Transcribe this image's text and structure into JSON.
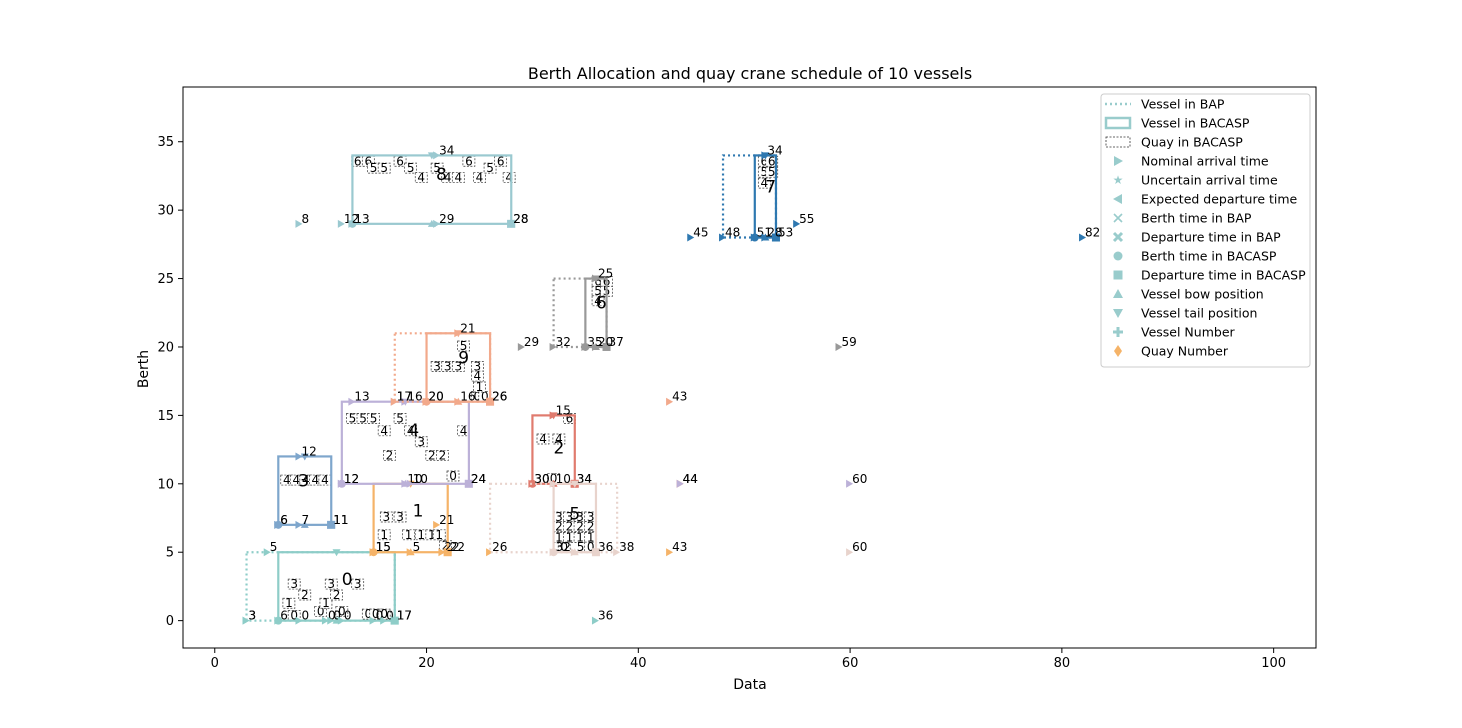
{
  "chart_data": {
    "type": "scatter",
    "title": "Berth Allocation and quay crane schedule  of 10 vessels",
    "xlabel": "Data",
    "ylabel": "Berth",
    "xlim": [
      -3,
      104
    ],
    "ylim": [
      -2,
      39
    ],
    "xticks": [
      0,
      20,
      40,
      60,
      80,
      100
    ],
    "yticks": [
      0,
      5,
      10,
      15,
      20,
      25,
      30,
      35
    ],
    "grid": false,
    "legend_position": "top-right",
    "legend": [
      {
        "label": "Vessel in BAP",
        "icon": "dotted-line"
      },
      {
        "label": "Vessel in BACASP",
        "icon": "solid-rect"
      },
      {
        "label": "Quay in BACASP",
        "icon": "dashed-rect"
      },
      {
        "label": "Nominal arrival time",
        "icon": "triangle-right"
      },
      {
        "label": "Uncertain arrival time",
        "icon": "star"
      },
      {
        "label": "Expected departure time",
        "icon": "triangle-left"
      },
      {
        "label": "Berth time in BAP",
        "icon": "x"
      },
      {
        "label": "Departure time in BAP",
        "icon": "x-filled"
      },
      {
        "label": "Berth time in BACASP",
        "icon": "circle"
      },
      {
        "label": "Departure time in BACASP",
        "icon": "square"
      },
      {
        "label": "Vessel bow position",
        "icon": "triangle-up"
      },
      {
        "label": "Vessel tail position",
        "icon": "triangle-down"
      },
      {
        "label": "Vessel Number",
        "icon": "plus"
      },
      {
        "label": "Quay Number",
        "icon": "diamond"
      }
    ],
    "legend_color": "#99cccc",
    "legend_quay_color": "#f5b368",
    "vessels": [
      {
        "id": "0",
        "color": "#8ecdc8",
        "bap": [
          3,
          0,
          17,
          5
        ],
        "bacasp": [
          6,
          0,
          17,
          5
        ],
        "labels": [
          [
            3,
            0,
            "3"
          ],
          [
            3,
            0,
            "3"
          ],
          [
            5,
            5,
            "5"
          ],
          [
            6,
            0,
            "6"
          ],
          [
            8,
            0,
            "0"
          ],
          [
            10.5,
            0,
            "0"
          ],
          [
            11,
            0,
            "0"
          ],
          [
            12,
            0,
            "0"
          ],
          [
            15,
            0,
            "0"
          ],
          [
            16,
            0,
            "0"
          ],
          [
            17,
            0,
            "17"
          ],
          [
            17,
            0,
            "17"
          ],
          [
            36,
            0,
            "36"
          ]
        ]
      },
      {
        "id": "1",
        "color": "#f5b368",
        "bap": null,
        "bacasp": [
          15,
          5,
          22,
          10
        ],
        "labels": [
          [
            15,
            5,
            "15"
          ],
          [
            15,
            5,
            "15"
          ],
          [
            18.5,
            5,
            "5"
          ],
          [
            21.5,
            5,
            "22"
          ],
          [
            22,
            5,
            "22"
          ],
          [
            21,
            7,
            "21"
          ],
          [
            26,
            5,
            "26"
          ],
          [
            43,
            5,
            "43"
          ]
        ]
      },
      {
        "id": "2",
        "color": "#e07b6e",
        "bap": null,
        "bacasp": [
          30,
          10,
          34,
          15
        ],
        "labels": [
          [
            30,
            10,
            "30"
          ],
          [
            30,
            10,
            "30"
          ],
          [
            34,
            10,
            "34"
          ],
          [
            34,
            10,
            "34"
          ],
          [
            32,
            15,
            "15"
          ],
          [
            44,
            10,
            "44"
          ]
        ]
      },
      {
        "id": "3",
        "color": "#7ea6cc",
        "bap": null,
        "bacasp": [
          6,
          7,
          11,
          12
        ],
        "labels": [
          [
            6,
            7,
            "6"
          ],
          [
            6,
            7,
            "6"
          ],
          [
            8,
            7,
            "7"
          ],
          [
            11,
            7,
            "11"
          ],
          [
            11,
            7,
            "11"
          ],
          [
            8,
            12,
            "12"
          ]
        ]
      },
      {
        "id": "4",
        "color": "#bcb1d8",
        "bap": null,
        "bacasp": [
          12,
          10,
          24,
          16
        ],
        "labels": [
          [
            12,
            10,
            "12"
          ],
          [
            12,
            10,
            "12"
          ],
          [
            18,
            10,
            "10"
          ],
          [
            18.5,
            10,
            "10"
          ],
          [
            24,
            10,
            "24"
          ],
          [
            24,
            10,
            "24"
          ],
          [
            13,
            16,
            "13"
          ],
          [
            17,
            16,
            "17"
          ],
          [
            18,
            16,
            "16"
          ],
          [
            44,
            10,
            "44"
          ],
          [
            60,
            10,
            "60"
          ]
        ]
      },
      {
        "id": "5",
        "color": "#e8d3cc",
        "bap": [
          26,
          5,
          38,
          10
        ],
        "bacasp": [
          32,
          5,
          36,
          10
        ],
        "labels": [
          [
            32,
            5,
            "32"
          ],
          [
            34,
            5,
            "5"
          ],
          [
            36,
            5,
            "36"
          ],
          [
            38,
            5,
            "38"
          ],
          [
            32,
            10,
            "10"
          ],
          [
            60,
            5,
            "60"
          ]
        ]
      },
      {
        "id": "6",
        "color": "#999999",
        "bap": [
          32,
          20,
          37,
          25
        ],
        "bacasp": [
          35,
          20,
          37,
          25
        ],
        "labels": [
          [
            29,
            20,
            "29"
          ],
          [
            32,
            20,
            "32"
          ],
          [
            35,
            20,
            "35"
          ],
          [
            36,
            20,
            "20"
          ],
          [
            37,
            20,
            "37"
          ],
          [
            36,
            25,
            "25"
          ],
          [
            59,
            20,
            "59"
          ]
        ]
      },
      {
        "id": "7",
        "color": "#2e78b0",
        "bap": [
          48,
          28,
          53,
          34
        ],
        "bacasp": [
          51,
          28,
          53,
          34
        ],
        "labels": [
          [
            45,
            28,
            "45"
          ],
          [
            48,
            28,
            "48"
          ],
          [
            51,
            28,
            "51"
          ],
          [
            52,
            28,
            "28"
          ],
          [
            53,
            28,
            "53"
          ],
          [
            52,
            34,
            "34"
          ],
          [
            55,
            29,
            "55"
          ],
          [
            82,
            28,
            "82"
          ]
        ]
      },
      {
        "id": "8",
        "color": "#9ac9d0",
        "bap": null,
        "bacasp": [
          13,
          29,
          28,
          34
        ],
        "labels": [
          [
            8,
            29,
            "8"
          ],
          [
            12,
            29,
            "12"
          ],
          [
            13,
            29,
            "13"
          ],
          [
            21,
            29,
            "29"
          ],
          [
            28,
            29,
            "28"
          ],
          [
            28,
            29,
            "28"
          ],
          [
            21,
            34,
            "34"
          ]
        ]
      },
      {
        "id": "9",
        "color": "#f2a98b",
        "bap": [
          17,
          16,
          26,
          21
        ],
        "bacasp": [
          20,
          16,
          26,
          21
        ],
        "labels": [
          [
            17,
            16,
            "17"
          ],
          [
            20,
            16,
            "20"
          ],
          [
            20,
            16,
            "20"
          ],
          [
            23,
            16,
            "16"
          ],
          [
            26,
            16,
            "26"
          ],
          [
            26,
            16,
            "26"
          ],
          [
            23,
            21,
            "21"
          ],
          [
            43,
            16,
            "43"
          ]
        ]
      }
    ],
    "vessel_number_labels": [
      {
        "x": 12.5,
        "y": 2.6,
        "text": "0"
      },
      {
        "x": 19.2,
        "y": 7.6,
        "text": "1"
      },
      {
        "x": 32.5,
        "y": 12.2,
        "text": "2"
      },
      {
        "x": 8.4,
        "y": 9.8,
        "text": "3"
      },
      {
        "x": 18.8,
        "y": 13.5,
        "text": "4"
      },
      {
        "x": 34,
        "y": 7.4,
        "text": "5"
      },
      {
        "x": 36.5,
        "y": 22.8,
        "text": "6"
      },
      {
        "x": 52.5,
        "y": 31.3,
        "text": "7"
      },
      {
        "x": 21.4,
        "y": 32.2,
        "text": "8"
      },
      {
        "x": 23.5,
        "y": 18.8,
        "text": "9"
      }
    ],
    "quay_cells": [
      {
        "x": 7,
        "y": 1.2,
        "t": "1"
      },
      {
        "x": 7.5,
        "y": 2.6,
        "t": "3"
      },
      {
        "x": 8.5,
        "y": 1.8,
        "t": "2"
      },
      {
        "x": 10,
        "y": 0.6,
        "t": "0"
      },
      {
        "x": 10.5,
        "y": 1.2,
        "t": "1"
      },
      {
        "x": 11,
        "y": 2.6,
        "t": "3"
      },
      {
        "x": 11.5,
        "y": 1.8,
        "t": "2"
      },
      {
        "x": 12,
        "y": 0.6,
        "t": "0"
      },
      {
        "x": 13.5,
        "y": 2.6,
        "t": "3"
      },
      {
        "x": 14.5,
        "y": 0.4,
        "t": "0"
      },
      {
        "x": 15.2,
        "y": 0.4,
        "t": "0"
      },
      {
        "x": 16,
        "y": 0.4,
        "t": "0"
      },
      {
        "x": 7.5,
        "y": 0.3,
        "t": "0"
      },
      {
        "x": 16,
        "y": 6.2,
        "t": "1"
      },
      {
        "x": 16.2,
        "y": 7.5,
        "t": "3"
      },
      {
        "x": 17.5,
        "y": 7.5,
        "t": "3"
      },
      {
        "x": 18.3,
        "y": 6.2,
        "t": "1"
      },
      {
        "x": 19.5,
        "y": 6.2,
        "t": "1"
      },
      {
        "x": 20.5,
        "y": 6.2,
        "t": "1"
      },
      {
        "x": 21.2,
        "y": 6.2,
        "t": "1"
      },
      {
        "x": 21.8,
        "y": 5.4,
        "t": "2"
      },
      {
        "x": 31,
        "y": 13.2,
        "t": "4"
      },
      {
        "x": 32.5,
        "y": 13.2,
        "t": "4"
      },
      {
        "x": 33.5,
        "y": 14.7,
        "t": "6"
      },
      {
        "x": 32,
        "y": 10.3,
        "t": "0"
      },
      {
        "x": 6.8,
        "y": 10.2,
        "t": "4"
      },
      {
        "x": 7.7,
        "y": 10.2,
        "t": "4"
      },
      {
        "x": 8.6,
        "y": 10.2,
        "t": "4"
      },
      {
        "x": 9.5,
        "y": 10.2,
        "t": "4"
      },
      {
        "x": 10.4,
        "y": 10.2,
        "t": "4"
      },
      {
        "x": 13,
        "y": 14.7,
        "t": "5"
      },
      {
        "x": 14,
        "y": 14.7,
        "t": "5"
      },
      {
        "x": 15,
        "y": 14.7,
        "t": "5"
      },
      {
        "x": 17.5,
        "y": 14.7,
        "t": "5"
      },
      {
        "x": 16,
        "y": 13.8,
        "t": "4"
      },
      {
        "x": 18.5,
        "y": 13.8,
        "t": "4"
      },
      {
        "x": 19.5,
        "y": 13,
        "t": "3"
      },
      {
        "x": 16.5,
        "y": 12,
        "t": "2"
      },
      {
        "x": 20.5,
        "y": 12,
        "t": "2"
      },
      {
        "x": 21.5,
        "y": 12,
        "t": "2"
      },
      {
        "x": 23.5,
        "y": 13.8,
        "t": "4"
      },
      {
        "x": 22.5,
        "y": 10.5,
        "t": "0"
      },
      {
        "x": 32.5,
        "y": 7.5,
        "t": "3"
      },
      {
        "x": 33.5,
        "y": 7.5,
        "t": "3"
      },
      {
        "x": 34.5,
        "y": 7.5,
        "t": "3"
      },
      {
        "x": 35.5,
        "y": 7.5,
        "t": "3"
      },
      {
        "x": 32.5,
        "y": 6.8,
        "t": "2"
      },
      {
        "x": 33.5,
        "y": 6.8,
        "t": "2"
      },
      {
        "x": 34.5,
        "y": 6.8,
        "t": "2"
      },
      {
        "x": 35.5,
        "y": 6.8,
        "t": "2"
      },
      {
        "x": 32.5,
        "y": 6,
        "t": "1"
      },
      {
        "x": 33.5,
        "y": 6,
        "t": "1"
      },
      {
        "x": 34.5,
        "y": 6,
        "t": "1"
      },
      {
        "x": 35.5,
        "y": 6,
        "t": "1"
      },
      {
        "x": 33,
        "y": 5.3,
        "t": "0"
      },
      {
        "x": 35.5,
        "y": 5.3,
        "t": "0"
      },
      {
        "x": 36.2,
        "y": 24.7,
        "t": "6"
      },
      {
        "x": 37,
        "y": 24.7,
        "t": "6"
      },
      {
        "x": 36.2,
        "y": 24,
        "t": "5"
      },
      {
        "x": 37,
        "y": 24,
        "t": "5"
      },
      {
        "x": 36.2,
        "y": 23.3,
        "t": "4"
      },
      {
        "x": 51.9,
        "y": 33.5,
        "t": "6"
      },
      {
        "x": 52.6,
        "y": 33.5,
        "t": "6"
      },
      {
        "x": 51.9,
        "y": 32.7,
        "t": "5"
      },
      {
        "x": 52.6,
        "y": 32.7,
        "t": "5"
      },
      {
        "x": 51.9,
        "y": 31.9,
        "t": "4"
      },
      {
        "x": 13.5,
        "y": 33.5,
        "t": "6"
      },
      {
        "x": 14.5,
        "y": 33.5,
        "t": "6"
      },
      {
        "x": 15,
        "y": 33,
        "t": "5"
      },
      {
        "x": 16,
        "y": 33,
        "t": "5"
      },
      {
        "x": 17.5,
        "y": 33.5,
        "t": "6"
      },
      {
        "x": 18.5,
        "y": 33,
        "t": "5"
      },
      {
        "x": 19.5,
        "y": 32.3,
        "t": "4"
      },
      {
        "x": 21,
        "y": 33,
        "t": "5"
      },
      {
        "x": 22,
        "y": 32.3,
        "t": "4"
      },
      {
        "x": 23,
        "y": 32.3,
        "t": "4"
      },
      {
        "x": 24,
        "y": 33.5,
        "t": "6"
      },
      {
        "x": 25,
        "y": 32.3,
        "t": "4"
      },
      {
        "x": 26,
        "y": 33,
        "t": "5"
      },
      {
        "x": 27,
        "y": 33.5,
        "t": "6"
      },
      {
        "x": 27.8,
        "y": 32.3,
        "t": "4"
      },
      {
        "x": 21,
        "y": 18.5,
        "t": "3"
      },
      {
        "x": 22,
        "y": 18.5,
        "t": "3"
      },
      {
        "x": 23,
        "y": 18.5,
        "t": "3"
      },
      {
        "x": 24.8,
        "y": 18.5,
        "t": "3"
      },
      {
        "x": 24.8,
        "y": 17.8,
        "t": "4"
      },
      {
        "x": 24.8,
        "y": 16.3,
        "t": "0"
      },
      {
        "x": 25.5,
        "y": 16.3,
        "t": "0"
      },
      {
        "x": 23.5,
        "y": 20,
        "t": "5"
      },
      {
        "x": 25,
        "y": 17,
        "t": "1"
      }
    ]
  }
}
